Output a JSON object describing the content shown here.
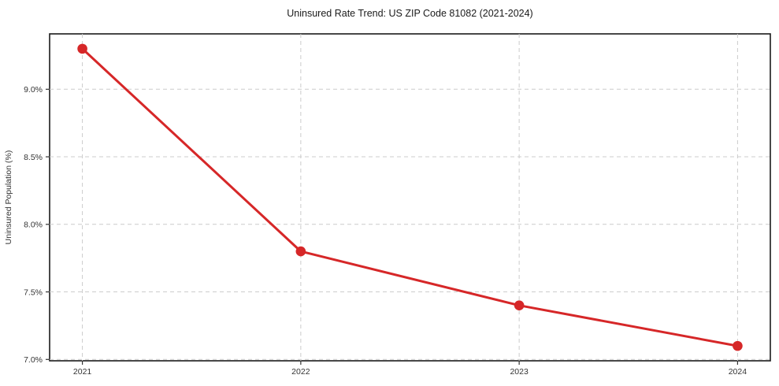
{
  "figure": {
    "background": "#ffffff"
  },
  "chart_data": {
    "type": "line",
    "title": "Uninsured Rate Trend: US ZIP Code 81082 (2021-2024)",
    "xlabel": "",
    "ylabel": "Uninsured Population (%)",
    "x": [
      2021,
      2022,
      2023,
      2024
    ],
    "values": [
      9.3,
      7.8,
      7.4,
      7.1
    ],
    "xtick_labels": [
      "2021",
      "2022",
      "2023",
      "2024"
    ],
    "ytick_values": [
      7.0,
      7.5,
      8.0,
      8.5,
      9.0
    ],
    "ytick_labels": [
      "7.0%",
      "7.5%",
      "8.0%",
      "8.5%",
      "9.0%"
    ],
    "xlim": [
      2020.85,
      2024.15
    ],
    "ylim": [
      6.99,
      9.41
    ],
    "grid": true,
    "grid_style": "dashed",
    "legend": false,
    "line_color": "#d62728",
    "marker": "circle",
    "grid_color": "#cccccc",
    "axis_color": "#1a1a1a",
    "tick_color": "#333333"
  }
}
